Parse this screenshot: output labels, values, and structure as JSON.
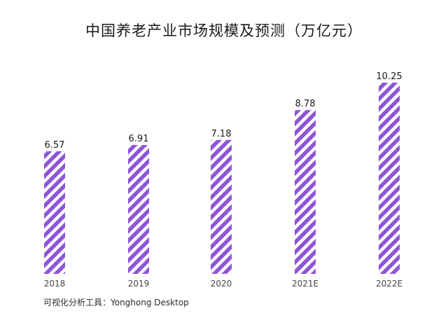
{
  "chart_data": {
    "type": "bar",
    "title": "中国养老产业市场规模及预测（万亿元）",
    "categories": [
      "2018",
      "2019",
      "2020",
      "2021E",
      "2022E"
    ],
    "values": [
      6.57,
      6.91,
      7.18,
      8.78,
      10.25
    ],
    "value_labels": [
      "6.57",
      "6.91",
      "7.18",
      "8.78",
      "10.25"
    ],
    "xlabel": "",
    "ylabel": "",
    "ylim": [
      0,
      10.25
    ],
    "grid": false,
    "legend": "none",
    "bar_color": "#8e55d6",
    "bar_pattern": "diagonal-stripes"
  },
  "footer": {
    "source_text": "可视化分析工具：Yonghong Desktop"
  }
}
